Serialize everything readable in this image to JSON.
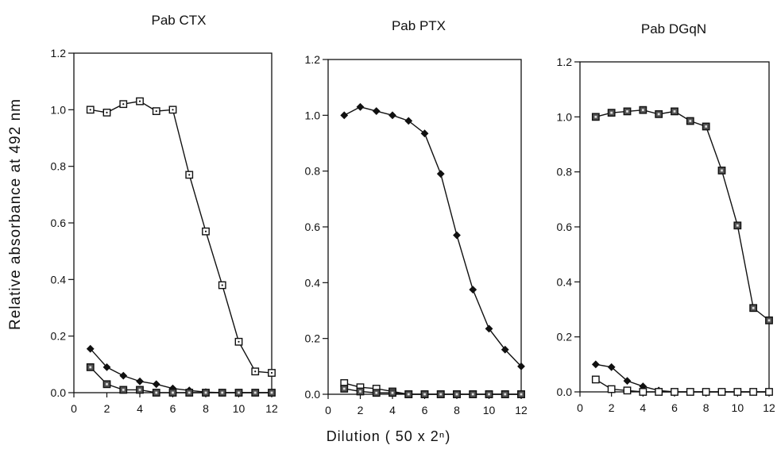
{
  "figure": {
    "ylabel": "Relative absorbance at 492 nm",
    "xlabel": "Dilution ( 50 x 2ⁿ)"
  },
  "chart_data": [
    {
      "type": "line",
      "title": "Pab CTX",
      "xlim": [
        0,
        12
      ],
      "ylim": [
        0,
        1.2
      ],
      "xticks": [
        0,
        2,
        4,
        6,
        8,
        10,
        12
      ],
      "yticks": [
        0.0,
        0.2,
        0.4,
        0.6,
        0.8,
        1.0,
        1.2
      ],
      "grid": false,
      "series": [
        {
          "marker": "open-square-dot",
          "x": [
            1,
            2,
            3,
            4,
            5,
            6,
            7,
            8,
            9,
            10,
            11,
            12
          ],
          "y": [
            1.0,
            0.99,
            1.02,
            1.03,
            0.995,
            1.0,
            0.77,
            0.57,
            0.38,
            0.18,
            0.075,
            0.07
          ]
        },
        {
          "marker": "filled-diamond",
          "x": [
            1,
            2,
            3,
            4,
            5,
            6,
            7,
            8,
            9,
            10,
            11,
            12
          ],
          "y": [
            0.155,
            0.09,
            0.06,
            0.04,
            0.03,
            0.015,
            0.008,
            0.002,
            0.0,
            0.0,
            0.0,
            0.0
          ]
        },
        {
          "marker": "dark-square",
          "x": [
            1,
            2,
            3,
            4,
            5,
            6,
            7,
            8,
            9,
            10,
            11,
            12
          ],
          "y": [
            0.09,
            0.03,
            0.01,
            0.01,
            0.0,
            0.0,
            0.0,
            0.0,
            0.0,
            0.0,
            0.0,
            0.0
          ]
        }
      ]
    },
    {
      "type": "line",
      "title": "Pab PTX",
      "xlim": [
        0,
        12
      ],
      "ylim": [
        0,
        1.2
      ],
      "xticks": [
        0,
        2,
        4,
        6,
        8,
        10,
        12
      ],
      "yticks": [
        0.0,
        0.2,
        0.4,
        0.6,
        0.8,
        1.0,
        1.2
      ],
      "grid": false,
      "series": [
        {
          "marker": "filled-diamond",
          "x": [
            1,
            2,
            3,
            4,
            5,
            6,
            7,
            8,
            9,
            10,
            11,
            12
          ],
          "y": [
            1.0,
            1.03,
            1.015,
            1.0,
            0.98,
            0.935,
            0.79,
            0.57,
            0.375,
            0.235,
            0.16,
            0.1
          ]
        },
        {
          "marker": "open-square",
          "x": [
            1,
            2,
            3,
            4,
            5,
            6,
            7,
            8,
            9,
            10,
            11,
            12
          ],
          "y": [
            0.04,
            0.025,
            0.02,
            0.01,
            0.0,
            0.0,
            0.0,
            0.0,
            0.0,
            0.0,
            0.0,
            0.0
          ]
        },
        {
          "marker": "dark-square",
          "x": [
            1,
            2,
            3,
            4,
            5,
            6,
            7,
            8,
            9,
            10,
            11,
            12
          ],
          "y": [
            0.02,
            0.01,
            0.005,
            0.005,
            0.0,
            0.0,
            0.0,
            0.0,
            0.0,
            0.0,
            0.0,
            0.0
          ]
        }
      ]
    },
    {
      "type": "line",
      "title": "Pab DGqN",
      "xlim": [
        0,
        12
      ],
      "ylim": [
        0,
        1.2
      ],
      "xticks": [
        0,
        2,
        4,
        6,
        8,
        10,
        12
      ],
      "yticks": [
        0.0,
        0.2,
        0.4,
        0.6,
        0.8,
        1.0,
        1.2
      ],
      "grid": false,
      "series": [
        {
          "marker": "dark-square",
          "x": [
            1,
            2,
            3,
            4,
            5,
            6,
            7,
            8,
            9,
            10,
            11,
            12
          ],
          "y": [
            1.0,
            1.015,
            1.02,
            1.025,
            1.01,
            1.02,
            0.985,
            0.965,
            0.805,
            0.605,
            0.305,
            0.26
          ]
        },
        {
          "marker": "filled-diamond",
          "x": [
            1,
            2,
            3,
            4,
            5,
            6,
            7,
            8,
            9,
            10,
            11,
            12
          ],
          "y": [
            0.1,
            0.09,
            0.04,
            0.02,
            0.005,
            0.0,
            0.0,
            0.0,
            0.0,
            0.0,
            0.0,
            0.0
          ]
        },
        {
          "marker": "open-square",
          "x": [
            1,
            2,
            3,
            4,
            5,
            6,
            7,
            8,
            9,
            10,
            11,
            12
          ],
          "y": [
            0.045,
            0.01,
            0.005,
            0.0,
            0.0,
            0.0,
            0.0,
            0.0,
            0.0,
            0.0,
            0.0,
            0.0
          ]
        }
      ]
    }
  ]
}
